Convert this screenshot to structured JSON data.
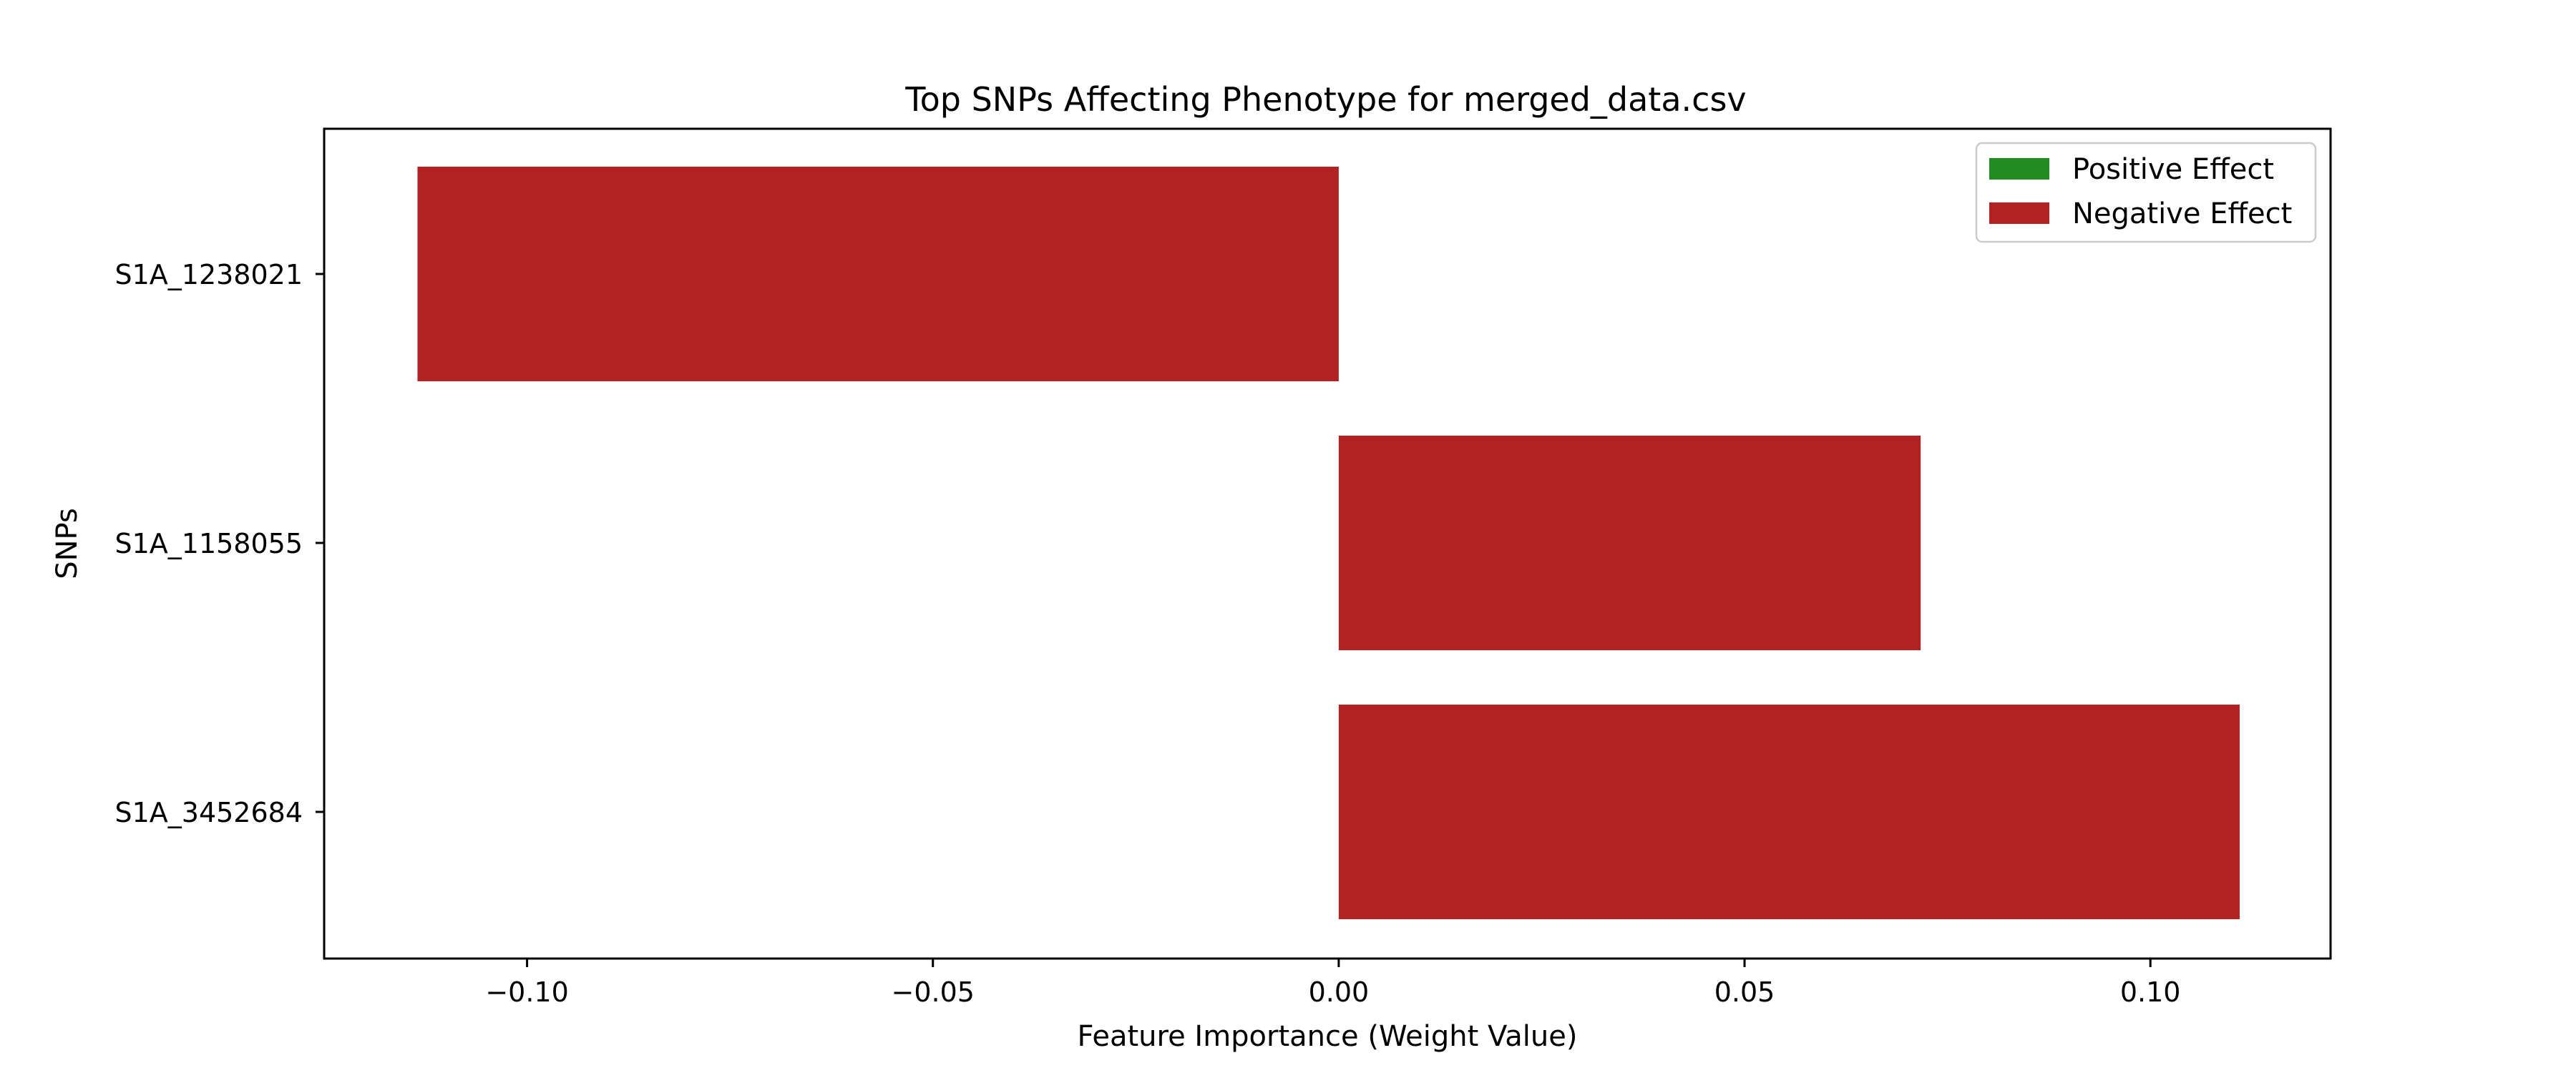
{
  "chart_data": {
    "type": "bar",
    "orientation": "horizontal",
    "title": "Top SNPs Affecting Phenotype for merged_data.csv",
    "xlabel": "Feature Importance (Weight Value)",
    "ylabel": "SNPs",
    "categories": [
      "S1A_1238021",
      "S1A_1158055",
      "S1A_3452684"
    ],
    "values": [
      -0.1135,
      0.0717,
      0.111
    ],
    "bar_colors": [
      "#b22222",
      "#b22222",
      "#b22222"
    ],
    "xlim": [
      -0.125,
      0.1222
    ],
    "xticks": [
      -0.1,
      -0.05,
      0.0,
      0.05,
      0.1
    ],
    "xtick_labels": [
      "−0.10",
      "−0.05",
      "0.00",
      "0.05",
      "0.10"
    ],
    "grid": false,
    "legend": {
      "placement": "top-right",
      "entries": [
        {
          "label": "Positive Effect",
          "color": "#228b22"
        },
        {
          "label": "Negative Effect",
          "color": "#b22222"
        }
      ]
    }
  }
}
